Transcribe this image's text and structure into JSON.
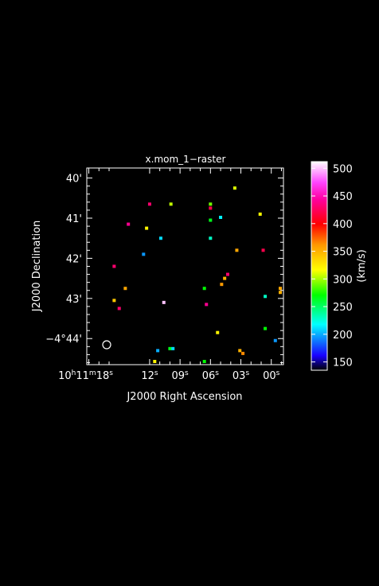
{
  "chart_data": {
    "type": "scatter",
    "title": "x.mom_1−raster",
    "xlabel": "J2000 Right Ascension",
    "ylabel": "J2000 Declination",
    "x_ticks": [
      {
        "label": "10h11m18s",
        "ra_s": 18
      },
      {
        "label": "12s",
        "ra_s": 12
      },
      {
        "label": "09s",
        "ra_s": 9
      },
      {
        "label": "06s",
        "ra_s": 6
      },
      {
        "label": "03s",
        "ra_s": 3
      },
      {
        "label": "00s",
        "ra_s": 0
      }
    ],
    "y_ticks": [
      {
        "label": "40'",
        "dec_arcmin": 40
      },
      {
        "label": "41'",
        "dec_arcmin": 41
      },
      {
        "label": "42'",
        "dec_arcmin": 42
      },
      {
        "label": "43'",
        "dec_arcmin": 43
      },
      {
        "label": "−4°44'",
        "dec_arcmin": 44
      }
    ],
    "xlim_ra_s": [
      18.2,
      -1.2
    ],
    "ylim_dec_arcmin": [
      39.75,
      44.65
    ],
    "colorbar": {
      "label": "(km/s)",
      "range": [
        135,
        512
      ],
      "ticks": [
        150,
        200,
        250,
        300,
        350,
        400,
        450,
        500
      ]
    },
    "beam_marker": "circle",
    "points": [
      {
        "ra_s": 3.6,
        "dec_arcmin": 40.25,
        "v": 310
      },
      {
        "ra_s": 12.0,
        "dec_arcmin": 40.65,
        "v": 430
      },
      {
        "ra_s": 9.9,
        "dec_arcmin": 40.65,
        "v": 305
      },
      {
        "ra_s": 6.0,
        "dec_arcmin": 40.65,
        "v": 290
      },
      {
        "ra_s": 6.0,
        "dec_arcmin": 40.75,
        "v": 420
      },
      {
        "ra_s": 1.1,
        "dec_arcmin": 40.9,
        "v": 315
      },
      {
        "ra_s": 5.0,
        "dec_arcmin": 40.98,
        "v": 215
      },
      {
        "ra_s": 6.0,
        "dec_arcmin": 41.05,
        "v": 265
      },
      {
        "ra_s": 14.1,
        "dec_arcmin": 41.15,
        "v": 440
      },
      {
        "ra_s": 12.3,
        "dec_arcmin": 41.25,
        "v": 320
      },
      {
        "ra_s": 10.9,
        "dec_arcmin": 41.5,
        "v": 210
      },
      {
        "ra_s": 6.0,
        "dec_arcmin": 41.5,
        "v": 230
      },
      {
        "ra_s": 3.4,
        "dec_arcmin": 41.8,
        "v": 355
      },
      {
        "ra_s": 0.8,
        "dec_arcmin": 41.8,
        "v": 420
      },
      {
        "ra_s": 12.6,
        "dec_arcmin": 41.9,
        "v": 195
      },
      {
        "ra_s": 15.5,
        "dec_arcmin": 42.2,
        "v": 430
      },
      {
        "ra_s": 4.3,
        "dec_arcmin": 42.4,
        "v": 430
      },
      {
        "ra_s": 4.6,
        "dec_arcmin": 42.5,
        "v": 350
      },
      {
        "ra_s": 4.9,
        "dec_arcmin": 42.65,
        "v": 360
      },
      {
        "ra_s": 14.4,
        "dec_arcmin": 42.75,
        "v": 355
      },
      {
        "ra_s": 6.6,
        "dec_arcmin": 42.75,
        "v": 270
      },
      {
        "ra_s": -1.2,
        "dec_arcmin": 42.75,
        "v": 355
      },
      {
        "ra_s": -1.2,
        "dec_arcmin": 42.85,
        "v": 350
      },
      {
        "ra_s": 0.6,
        "dec_arcmin": 42.95,
        "v": 230
      },
      {
        "ra_s": 15.5,
        "dec_arcmin": 43.05,
        "v": 340
      },
      {
        "ra_s": 10.6,
        "dec_arcmin": 43.1,
        "v": 500
      },
      {
        "ra_s": 6.4,
        "dec_arcmin": 43.15,
        "v": 440
      },
      {
        "ra_s": 15.0,
        "dec_arcmin": 43.25,
        "v": 430
      },
      {
        "ra_s": 0.6,
        "dec_arcmin": 43.75,
        "v": 270
      },
      {
        "ra_s": 5.3,
        "dec_arcmin": 43.85,
        "v": 320
      },
      {
        "ra_s": -0.4,
        "dec_arcmin": 44.05,
        "v": 195
      },
      {
        "ra_s": 10.0,
        "dec_arcmin": 44.25,
        "v": 265
      },
      {
        "ra_s": 9.7,
        "dec_arcmin": 44.25,
        "v": 210
      },
      {
        "ra_s": 11.2,
        "dec_arcmin": 44.3,
        "v": 200
      },
      {
        "ra_s": 3.1,
        "dec_arcmin": 44.3,
        "v": 350
      },
      {
        "ra_s": 2.8,
        "dec_arcmin": 44.37,
        "v": 365
      },
      {
        "ra_s": 11.5,
        "dec_arcmin": 44.6,
        "v": 320
      },
      {
        "ra_s": 6.6,
        "dec_arcmin": 44.6,
        "v": 270
      }
    ]
  }
}
